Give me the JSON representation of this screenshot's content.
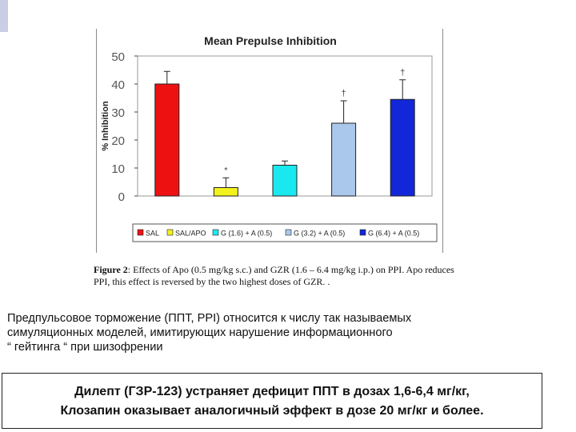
{
  "chart_data": {
    "type": "bar",
    "title": "Mean Prepulse Inhibition",
    "ylabel": "% Inhibition",
    "xlabel": "",
    "ylim": [
      0,
      50
    ],
    "yticks": [
      0,
      10,
      20,
      30,
      40,
      50
    ],
    "categories": [
      "SAL",
      "SAL/APO",
      "G (1.6) + A (0.5)",
      "G (3.2) + A (0.5)",
      "G (6.4) + A (0.5)"
    ],
    "legend_labels": [
      "SAL",
      "SAL/APO",
      "G (1.6) + A (0.5)",
      "G (3.2) + A (0.5)",
      "G (6.4) + A (0.5)"
    ],
    "values": [
      40,
      3,
      11,
      26,
      34.5
    ],
    "errors": [
      4.5,
      3.5,
      1.5,
      8,
      7
    ],
    "colors": [
      "#ee1111",
      "#f2f21e",
      "#19e8ee",
      "#a9c8ec",
      "#1228d8"
    ],
    "significance": [
      "",
      "*",
      "",
      "†",
      "†"
    ],
    "legend_position": "bottom"
  },
  "caption": {
    "label": "Figure 2",
    "text": ": Effects of Apo (0.5 mg/kg s.c.) and GZR (1.6 – 6.4 mg/kg i.p.) on PPI. Apo reduces PPI, this effect is reversed by the two highest doses of GZR. ."
  },
  "paragraph": {
    "line1": "Предпульсовое торможение (ППТ, PPI) относится к числу так называемых",
    "line2": "симуляционных моделей, имитирующих нарушение информационного",
    "line3": "“ гейтинга “ при шизофрении"
  },
  "boxed": {
    "line1": "Дилепт (ГЗР-123) устраняет дефицит ППТ в дозах 1,6-6,4 мг/кг,",
    "line2": "Клозапин оказывает аналогичный эффект в дозе 20 мг/кг и более."
  }
}
